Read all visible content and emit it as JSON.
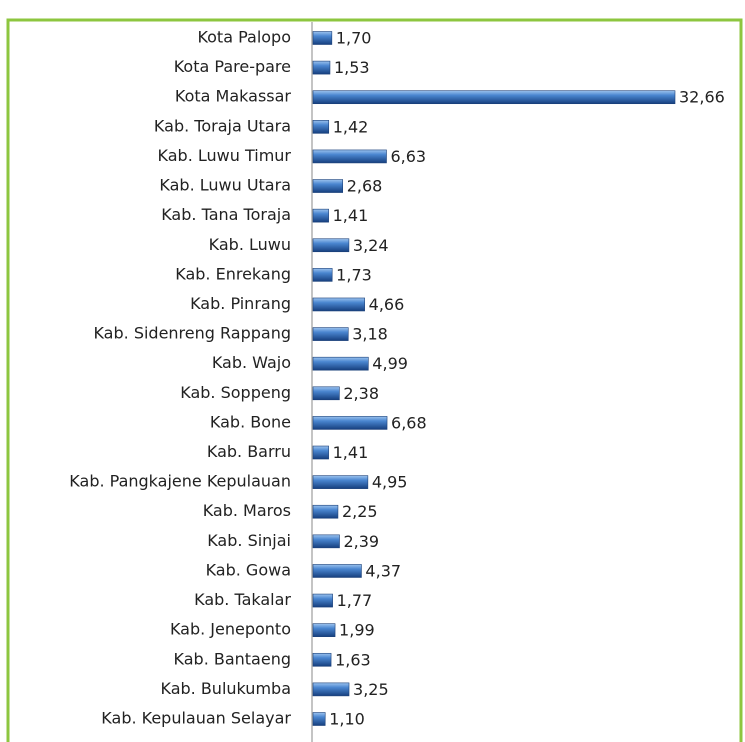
{
  "chart_data": {
    "type": "barh",
    "categories": [
      "Kota Palopo",
      "Kota Pare-pare",
      "Kota Makassar",
      "Kab. Toraja Utara",
      "Kab. Luwu Timur",
      "Kab. Luwu Utara",
      "Kab. Tana Toraja",
      "Kab. Luwu",
      "Kab. Enrekang",
      "Kab. Pinrang",
      "Kab. Sidenreng Rappang",
      "Kab. Wajo",
      "Kab. Soppeng",
      "Kab. Bone",
      "Kab. Barru",
      "Kab. Pangkajene Kepulauan",
      "Kab. Maros",
      "Kab. Sinjai",
      "Kab. Gowa",
      "Kab. Takalar",
      "Kab. Jeneponto",
      "Kab. Bantaeng",
      "Kab. Bulukumba",
      "Kab. Kepulauan Selayar"
    ],
    "values": [
      1.7,
      1.53,
      32.66,
      1.42,
      6.63,
      2.68,
      1.41,
      3.24,
      1.73,
      4.66,
      3.18,
      4.99,
      2.38,
      6.68,
      1.41,
      4.95,
      2.25,
      2.39,
      4.37,
      1.77,
      1.99,
      1.63,
      3.25,
      1.1
    ],
    "value_labels": [
      "1,70",
      "1,53",
      "32,66",
      "1,42",
      "6,63",
      "2,68",
      "1,41",
      "3,24",
      "1,73",
      "4,66",
      "3,18",
      "4,99",
      "2,38",
      "6,68",
      "1,41",
      "4,95",
      "2,25",
      "2,39",
      "4,37",
      "1,77",
      "1,99",
      "1,63",
      "3,25",
      "1,10"
    ],
    "color": "#2f6dc0"
  }
}
